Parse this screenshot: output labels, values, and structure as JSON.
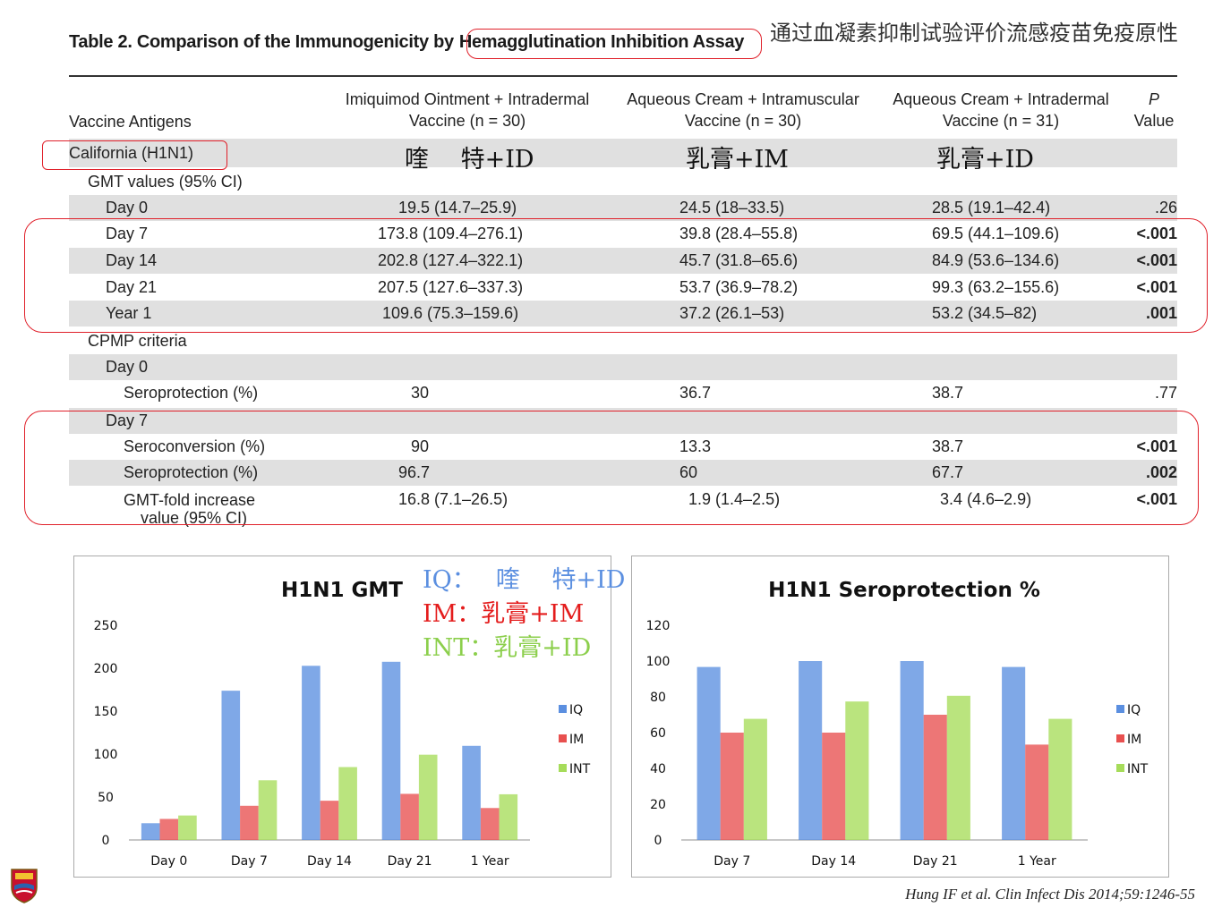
{
  "table": {
    "title_prefix": "Table 2.   Comparison of the Immunogenicity by",
    "title_highlight": "Hemagglutination Inhibition Assay",
    "headers": {
      "col0": "Vaccine Antigens",
      "col1_l1": "Imiquimod Ointment + Intradermal",
      "col1_l2": "Vaccine (n = 30)",
      "col2_l1": "Aqueous Cream + Intramuscular",
      "col2_l2": "Vaccine (n = 30)",
      "col3_l1": "Aqueous Cream + Intradermal",
      "col3_l2": "Vaccine (n = 31)",
      "col4_l1": "P",
      "col4_l2": "Value"
    },
    "antigen": "California (H1N1)",
    "antigen_cn": [
      "喹　 特+ID",
      "乳膏+IM",
      "乳膏+ID"
    ],
    "sections": {
      "gmt": "GMT values (95% CI)",
      "cpmp": "CPMP criteria",
      "day0": "Day 0",
      "day7": "Day 7"
    },
    "gmt_rows": [
      {
        "label": "Day 0",
        "iq": "19.5 (14.7–25.9)",
        "im": "24.5 (18–33.5)",
        "int": "28.5 (19.1–42.4)",
        "p": ".26"
      },
      {
        "label": "Day 7",
        "iq": "173.8 (109.4–276.1)",
        "im": "39.8 (28.4–55.8)",
        "int": "69.5 (44.1–109.6)",
        "p": "<.001"
      },
      {
        "label": "Day 14",
        "iq": "202.8 (127.4–322.1)",
        "im": "45.7 (31.8–65.6)",
        "int": "84.9 (53.6–134.6)",
        "p": "<.001"
      },
      {
        "label": "Day 21",
        "iq": "207.5 (127.6–337.3)",
        "im": "53.7 (36.9–78.2)",
        "int": "99.3 (63.2–155.6)",
        "p": "<.001"
      },
      {
        "label": "Year 1",
        "iq": "109.6 (75.3–159.6)",
        "im": "37.2 (26.1–53)",
        "int": "53.2 (34.5–82)",
        "p": ".001"
      }
    ],
    "cpmp_day0": {
      "label": "Seroprotection (%)",
      "iq": "30",
      "im": "36.7",
      "int": "38.7",
      "p": ".77"
    },
    "cpmp_day7": [
      {
        "label": "Seroconversion (%)",
        "iq": "90",
        "im": "13.3",
        "int": "38.7",
        "p": "<.001"
      },
      {
        "label": "Seroprotection (%)",
        "iq": "96.7",
        "im": "60",
        "int": "67.7",
        "p": ".002"
      },
      {
        "label_l1": "GMT-fold increase",
        "label_l2": "value (95% CI)",
        "iq": "16.8 (7.1–26.5)",
        "im": "1.9 (1.4–2.5)",
        "int": "3.4 (4.6–2.9)",
        "p": "<.001"
      }
    ]
  },
  "annotation_cn": "通过血凝素抑制试验评价流感疫苗免疫原性",
  "legend_cn": {
    "iq": "IQ：　 喹　 特+ID",
    "im": "IM：乳膏+IM",
    "int": "INT：乳膏+ID"
  },
  "colors": {
    "iq": "#5b8fe0",
    "im": "#e8504f",
    "int": "#a6dc5a",
    "highlight": "#e0202a"
  },
  "chart_data": [
    {
      "type": "bar",
      "title": "H1N1 GMT",
      "categories": [
        "Day 0",
        "Day 7",
        "Day 14",
        "Day 21",
        "1 Year"
      ],
      "series": [
        {
          "name": "IQ",
          "values": [
            19.5,
            173.8,
            202.8,
            207.5,
            109.6
          ]
        },
        {
          "name": "IM",
          "values": [
            24.5,
            39.8,
            45.7,
            53.7,
            37.2
          ]
        },
        {
          "name": "INT",
          "values": [
            28.5,
            69.5,
            84.9,
            99.3,
            53.2
          ]
        }
      ],
      "yticks": [
        0,
        50,
        100,
        150,
        200,
        250
      ],
      "ylim": [
        0,
        250
      ],
      "legend": "right"
    },
    {
      "type": "bar",
      "title": "H1N1 Seroprotection %",
      "categories": [
        "Day 7",
        "Day 14",
        "Day 21",
        "1 Year"
      ],
      "series": [
        {
          "name": "IQ",
          "values": [
            96.7,
            100,
            100,
            96.7
          ]
        },
        {
          "name": "IM",
          "values": [
            60,
            60,
            70,
            53.3
          ]
        },
        {
          "name": "INT",
          "values": [
            67.7,
            77.4,
            80.6,
            67.7
          ]
        }
      ],
      "yticks": [
        0,
        20,
        40,
        60,
        80,
        100,
        120
      ],
      "ylim": [
        0,
        120
      ],
      "legend": "right"
    }
  ],
  "citation": "Hung IF et al. Clin Infect Dis 2014;59:1246-55"
}
